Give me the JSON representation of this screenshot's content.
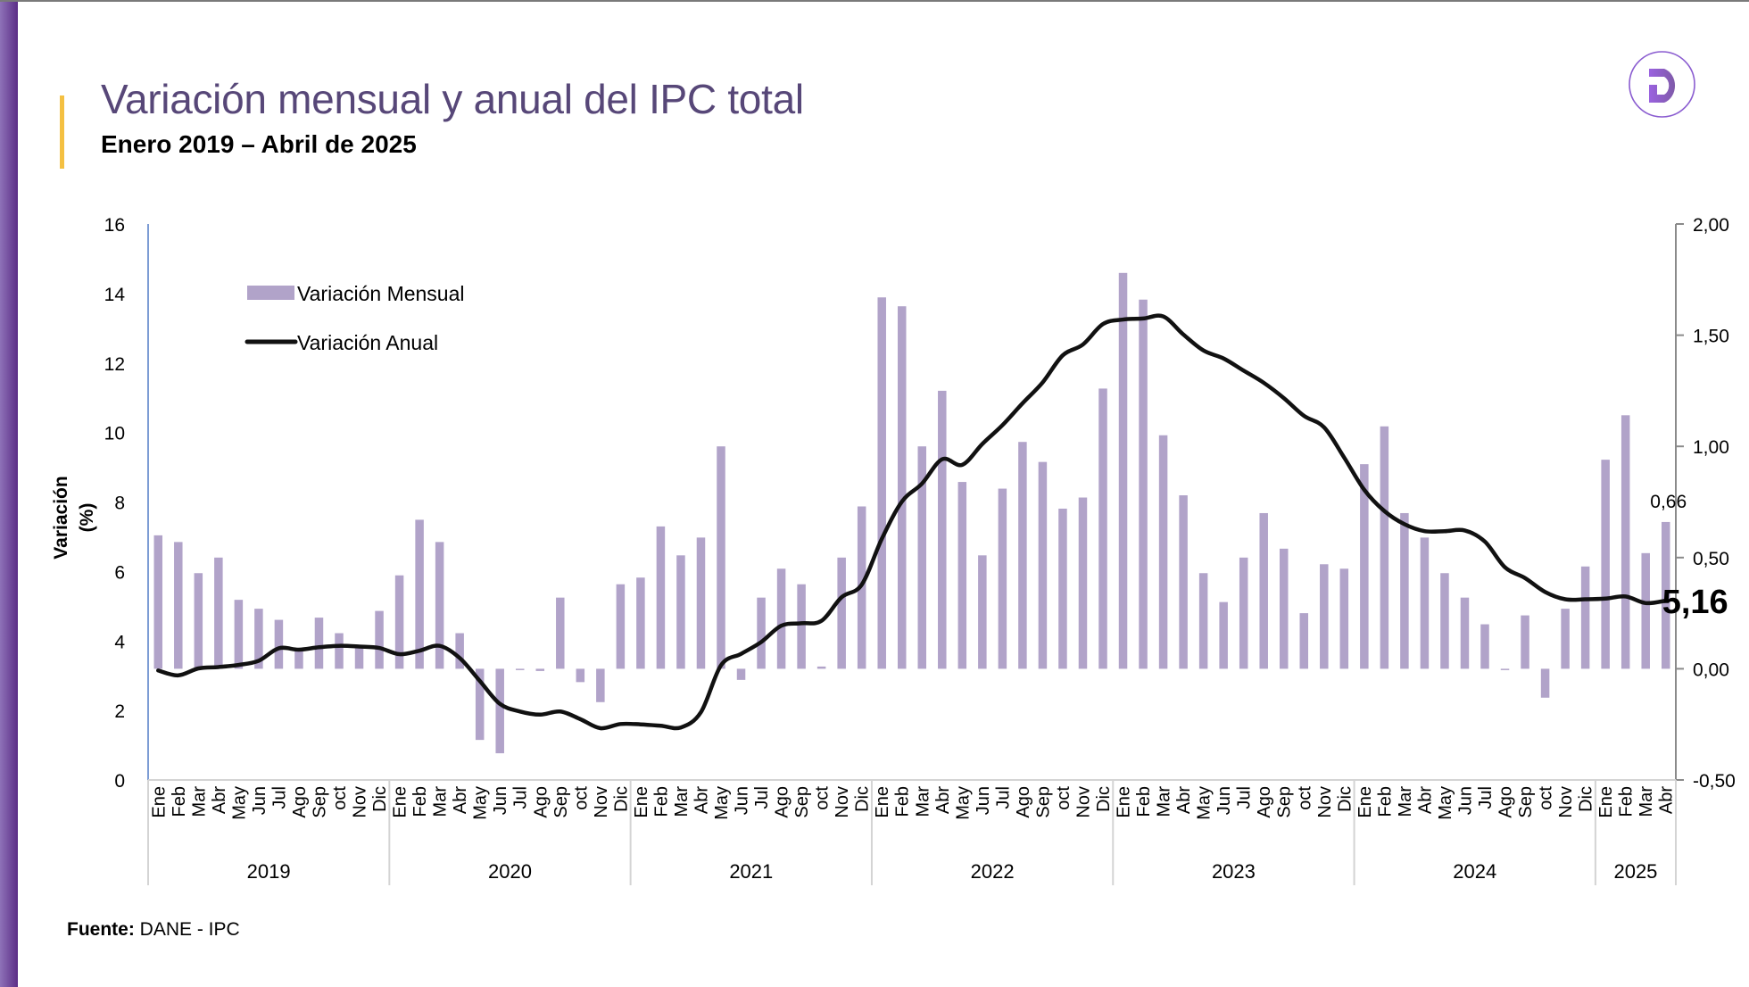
{
  "header": {
    "title": "Variación mensual y anual del IPC total",
    "subtitle": "Enero 2019 – Abril de 2025",
    "logo_icon": "d-circle-logo-icon"
  },
  "footer": {
    "source_label": "Fuente:",
    "source_value": " DANE - IPC"
  },
  "colors": {
    "title": "#574778",
    "bars": "#b1a3c9",
    "line": "#111111",
    "accent": "#f4c042",
    "logo": "#8a5cd0"
  },
  "chart_data": {
    "type": "bar+line",
    "title": "Variación mensual y anual del IPC total",
    "subtitle": "Enero 2019 – Abril de 2025",
    "ylabel": "Variación (%)",
    "ylabel_lines": [
      "Variación",
      "(%)"
    ],
    "y_left": {
      "range": [
        0,
        16
      ],
      "ticks": [
        "0",
        "2",
        "4",
        "6",
        "8",
        "10",
        "12",
        "14",
        "16"
      ]
    },
    "y_right": {
      "range": [
        -0.5,
        2.0
      ],
      "ticks": [
        "-0,50",
        "0,00",
        "0,50",
        "1,00",
        "1,50",
        "2,00"
      ]
    },
    "legend": {
      "position": "top-left",
      "items": [
        "Variación Mensual",
        "Variación Anual"
      ]
    },
    "years": [
      {
        "label": "2019",
        "months": 12
      },
      {
        "label": "2020",
        "months": 12
      },
      {
        "label": "2021",
        "months": 12
      },
      {
        "label": "2022",
        "months": 12
      },
      {
        "label": "2023",
        "months": 12
      },
      {
        "label": "2024",
        "months": 12
      },
      {
        "label": "2025",
        "months": 4
      }
    ],
    "month_labels": [
      "Ene",
      "Feb",
      "Mar",
      "Abr",
      "May",
      "Jun",
      "Jul",
      "Ago",
      "Sep",
      "oct",
      "Nov",
      "Dic"
    ],
    "series": [
      {
        "name": "Variación Mensual",
        "type": "bar",
        "axis": "right",
        "values": [
          0.6,
          0.57,
          0.43,
          0.5,
          0.31,
          0.27,
          0.22,
          0.09,
          0.23,
          0.16,
          0.1,
          0.26,
          0.42,
          0.67,
          0.57,
          0.16,
          -0.32,
          -0.38,
          0.0,
          -0.01,
          0.32,
          -0.06,
          -0.15,
          0.38,
          0.41,
          0.64,
          0.51,
          0.59,
          1.0,
          -0.05,
          0.32,
          0.45,
          0.38,
          0.01,
          0.5,
          0.73,
          1.67,
          1.63,
          1.0,
          1.25,
          0.84,
          0.51,
          0.81,
          1.02,
          0.93,
          0.72,
          0.77,
          1.26,
          1.78,
          1.66,
          1.05,
          0.78,
          0.43,
          0.3,
          0.5,
          0.7,
          0.54,
          0.25,
          0.47,
          0.45,
          0.92,
          1.09,
          0.7,
          0.59,
          0.43,
          0.32,
          0.2,
          0.0,
          0.24,
          -0.13,
          0.27,
          0.46,
          0.94,
          1.14,
          0.52,
          0.66
        ]
      },
      {
        "name": "Variación Anual",
        "type": "line",
        "axis": "left",
        "values": [
          3.15,
          3.01,
          3.21,
          3.25,
          3.31,
          3.43,
          3.79,
          3.75,
          3.82,
          3.86,
          3.84,
          3.8,
          3.62,
          3.72,
          3.86,
          3.51,
          2.85,
          2.19,
          1.97,
          1.88,
          1.97,
          1.75,
          1.49,
          1.61,
          1.6,
          1.56,
          1.51,
          1.95,
          3.3,
          3.63,
          3.97,
          4.44,
          4.51,
          4.58,
          5.26,
          5.62,
          6.94,
          8.01,
          8.53,
          9.23,
          9.07,
          9.67,
          10.21,
          10.84,
          11.44,
          12.22,
          12.53,
          13.12,
          13.25,
          13.28,
          13.34,
          12.82,
          12.36,
          12.13,
          11.78,
          11.43,
          10.99,
          10.48,
          10.15,
          9.28,
          8.35,
          7.74,
          7.36,
          7.16,
          7.16,
          7.18,
          6.86,
          6.12,
          5.81,
          5.41,
          5.2,
          5.2,
          5.22,
          5.28,
          5.09,
          5.16
        ]
      }
    ],
    "annotations": [
      {
        "text": "0,66",
        "series": "Variación Mensual",
        "point": "Abr 2025"
      },
      {
        "text": "5,16",
        "series": "Variación Anual",
        "point": "Abr 2025",
        "bold": true
      }
    ]
  }
}
